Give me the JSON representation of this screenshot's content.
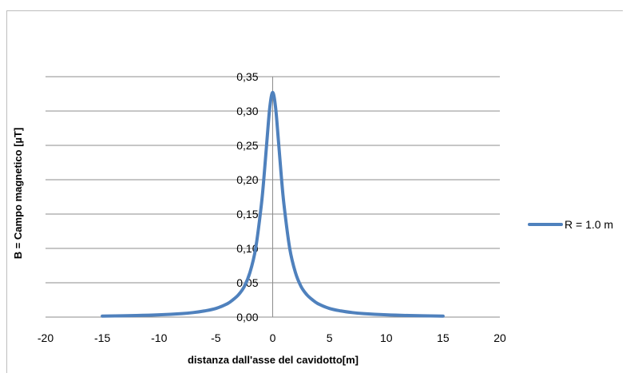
{
  "chart_data": {
    "type": "line",
    "xlabel": "distanza dall'asse del cavidotto[m]",
    "ylabel": "B = Campo magnetico [µT]",
    "xlim": [
      -20,
      20
    ],
    "ylim": [
      0,
      0.35
    ],
    "x_ticks": [
      {
        "value": -20,
        "label": "-20"
      },
      {
        "value": -15,
        "label": "-15"
      },
      {
        "value": -10,
        "label": "-10"
      },
      {
        "value": -5,
        "label": "-5"
      },
      {
        "value": 0,
        "label": "0"
      },
      {
        "value": 5,
        "label": "5"
      },
      {
        "value": 10,
        "label": "10"
      },
      {
        "value": 15,
        "label": "15"
      },
      {
        "value": 20,
        "label": "20"
      }
    ],
    "y_ticks": [
      {
        "value": 0.0,
        "label": "0,00"
      },
      {
        "value": 0.05,
        "label": "0,05"
      },
      {
        "value": 0.1,
        "label": "0,10"
      },
      {
        "value": 0.15,
        "label": "0,15"
      },
      {
        "value": 0.2,
        "label": "0,20"
      },
      {
        "value": 0.25,
        "label": "0,25"
      },
      {
        "value": 0.3,
        "label": "0,30"
      },
      {
        "value": 0.35,
        "label": "0,35"
      }
    ],
    "grid": "horizontal",
    "legend_position": "right",
    "series": [
      {
        "name": "R = 1.0 m",
        "color": "#4f81bd",
        "x": [
          -15,
          -12,
          -10,
          -8,
          -7,
          -6,
          -5,
          -4,
          -3.5,
          -3,
          -2.5,
          -2,
          -1.5,
          -1,
          -0.75,
          -0.5,
          -0.25,
          0,
          0.25,
          0.5,
          0.75,
          1,
          1.5,
          2,
          2.5,
          3,
          3.5,
          4,
          5,
          6,
          7,
          8,
          10,
          12,
          15
        ],
        "y": [
          0.0015,
          0.0023,
          0.0033,
          0.0051,
          0.0066,
          0.009,
          0.0126,
          0.0194,
          0.0252,
          0.0327,
          0.0445,
          0.065,
          0.1,
          0.163,
          0.207,
          0.258,
          0.306,
          0.327,
          0.306,
          0.258,
          0.207,
          0.163,
          0.1,
          0.065,
          0.0445,
          0.0327,
          0.0252,
          0.0194,
          0.0126,
          0.009,
          0.0066,
          0.0051,
          0.0033,
          0.0023,
          0.0015
        ]
      }
    ]
  }
}
